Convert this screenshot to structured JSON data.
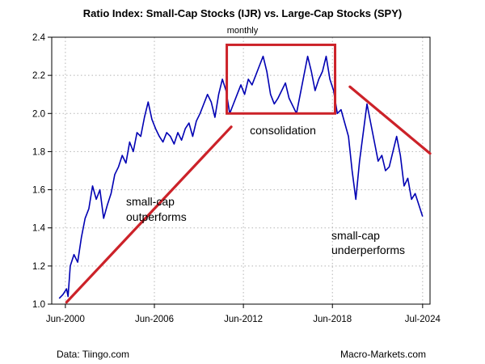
{
  "chart_data": {
    "type": "line",
    "title": "Ratio Index: Small-Cap Stocks (IJR) vs. Large-Cap Stocks (SPY)",
    "subtitle": "monthly",
    "ylim": [
      1.0,
      2.4
    ],
    "yticks": [
      1.0,
      1.2,
      1.4,
      1.6,
      1.8,
      2.0,
      2.2,
      2.4
    ],
    "ytick_labels": [
      "1.0",
      "1.2",
      "1.4",
      "1.6",
      "1.8",
      "2.0",
      "2.2",
      "2.4"
    ],
    "xlim": [
      1999.5,
      2025.0
    ],
    "xticks": [
      2000.42,
      2006.42,
      2012.42,
      2018.42,
      2024.5
    ],
    "xtick_labels": [
      "Jun-2000",
      "Jun-2006",
      "Jun-2012",
      "Jun-2018",
      "Jul-2024"
    ],
    "grid": true,
    "series": [
      {
        "name": "IJR/SPY ratio",
        "color": "#0000b3",
        "x": [
          2000.0,
          2000.25,
          2000.5,
          2000.6,
          2000.75,
          2001.0,
          2001.25,
          2001.5,
          2001.75,
          2002.0,
          2002.25,
          2002.5,
          2002.75,
          2003.0,
          2003.25,
          2003.5,
          2003.75,
          2004.0,
          2004.25,
          2004.5,
          2004.75,
          2005.0,
          2005.25,
          2005.5,
          2005.75,
          2006.0,
          2006.25,
          2006.5,
          2006.75,
          2007.0,
          2007.25,
          2007.5,
          2007.75,
          2008.0,
          2008.25,
          2008.5,
          2008.75,
          2009.0,
          2009.25,
          2009.5,
          2009.75,
          2010.0,
          2010.25,
          2010.5,
          2010.75,
          2011.0,
          2011.25,
          2011.5,
          2011.75,
          2012.0,
          2012.25,
          2012.5,
          2012.75,
          2013.0,
          2013.25,
          2013.5,
          2013.75,
          2014.0,
          2014.25,
          2014.5,
          2014.75,
          2015.0,
          2015.25,
          2015.5,
          2015.75,
          2016.0,
          2016.25,
          2016.5,
          2016.75,
          2017.0,
          2017.25,
          2017.5,
          2017.75,
          2018.0,
          2018.25,
          2018.5,
          2018.75,
          2019.0,
          2019.25,
          2019.5,
          2019.75,
          2020.0,
          2020.25,
          2020.5,
          2020.75,
          2021.0,
          2021.25,
          2021.5,
          2021.75,
          2022.0,
          2022.25,
          2022.5,
          2022.75,
          2023.0,
          2023.25,
          2023.5,
          2023.75,
          2024.0,
          2024.25,
          2024.5
        ],
        "values": [
          1.03,
          1.05,
          1.08,
          1.04,
          1.2,
          1.26,
          1.22,
          1.35,
          1.45,
          1.5,
          1.62,
          1.55,
          1.6,
          1.45,
          1.52,
          1.58,
          1.68,
          1.72,
          1.78,
          1.74,
          1.85,
          1.8,
          1.9,
          1.88,
          1.98,
          2.06,
          1.97,
          1.92,
          1.88,
          1.85,
          1.9,
          1.88,
          1.84,
          1.9,
          1.86,
          1.92,
          1.95,
          1.88,
          1.96,
          2.0,
          2.05,
          2.1,
          2.06,
          1.98,
          2.1,
          2.18,
          2.12,
          2.0,
          2.05,
          2.1,
          2.15,
          2.1,
          2.18,
          2.15,
          2.2,
          2.25,
          2.3,
          2.22,
          2.1,
          2.05,
          2.08,
          2.12,
          2.16,
          2.08,
          2.04,
          2.0,
          2.1,
          2.2,
          2.3,
          2.22,
          2.12,
          2.18,
          2.22,
          2.3,
          2.18,
          2.12,
          2.0,
          2.02,
          1.95,
          1.88,
          1.7,
          1.55,
          1.75,
          1.9,
          2.05,
          1.95,
          1.85,
          1.75,
          1.78,
          1.7,
          1.72,
          1.8,
          1.88,
          1.78,
          1.62,
          1.66,
          1.55,
          1.58,
          1.52,
          1.46
        ]
      }
    ],
    "annotations": [
      {
        "id": "consolidation",
        "lines": [
          "consolidation"
        ]
      },
      {
        "id": "outperforms",
        "lines": [
          "small-cap",
          "outperforms"
        ]
      },
      {
        "id": "underperforms",
        "lines": [
          "small-cap",
          "underperforms"
        ]
      }
    ],
    "trendlines": [
      {
        "name": "up-trendline",
        "from": [
          2000.5,
          1.01
        ],
        "to": [
          2011.6,
          1.93
        ]
      },
      {
        "name": "down-trendline",
        "from": [
          2019.6,
          2.14
        ],
        "to": [
          2025.0,
          1.79
        ]
      }
    ],
    "consolidation_box": {
      "x0": 2011.3,
      "x1": 2018.6,
      "y0": 2.0,
      "y1": 2.36
    },
    "trend_color": "#cc2229"
  },
  "footer": {
    "source": "Data: Tiingo.com",
    "credit": "Macro-Markets.com"
  }
}
